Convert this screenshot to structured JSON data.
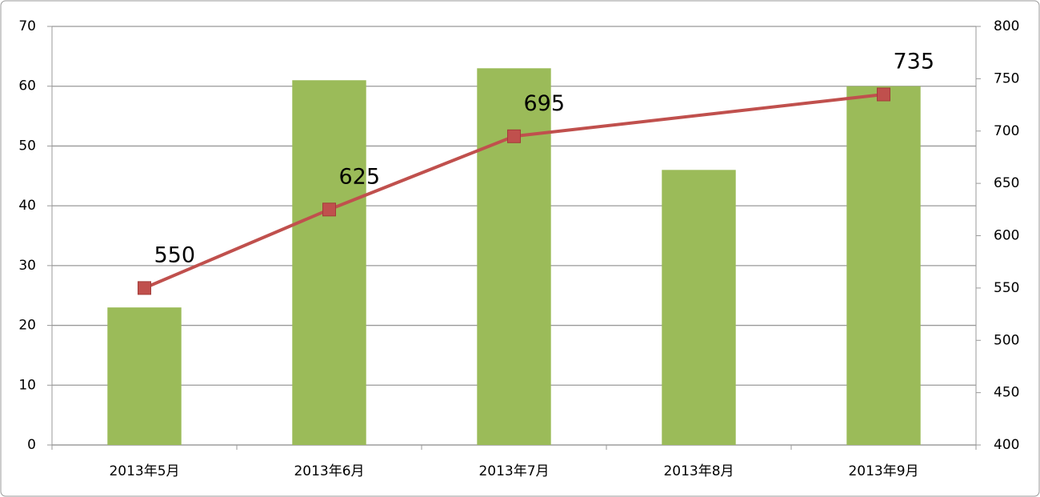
{
  "chart_data": {
    "type": "bar-line",
    "categories": [
      "2013年5月",
      "2013年6月",
      "2013年7月",
      "2013年8月",
      "2013年9月"
    ],
    "series": [
      {
        "type": "bar",
        "color": "#9bbb59",
        "values": [
          23,
          61,
          63,
          46,
          60
        ]
      },
      {
        "type": "line",
        "axis": "y2",
        "color": "#c0504d",
        "values": [
          550,
          625,
          695,
          null,
          735
        ]
      }
    ],
    "ylim": [
      0,
      70
    ],
    "yticks": [
      0,
      10,
      20,
      30,
      40,
      50,
      60,
      70
    ],
    "y2lim": [
      400,
      800
    ],
    "y2ticks": [
      400,
      450,
      500,
      550,
      600,
      650,
      700,
      750,
      800
    ],
    "grid": true,
    "connect_gaps": true
  }
}
